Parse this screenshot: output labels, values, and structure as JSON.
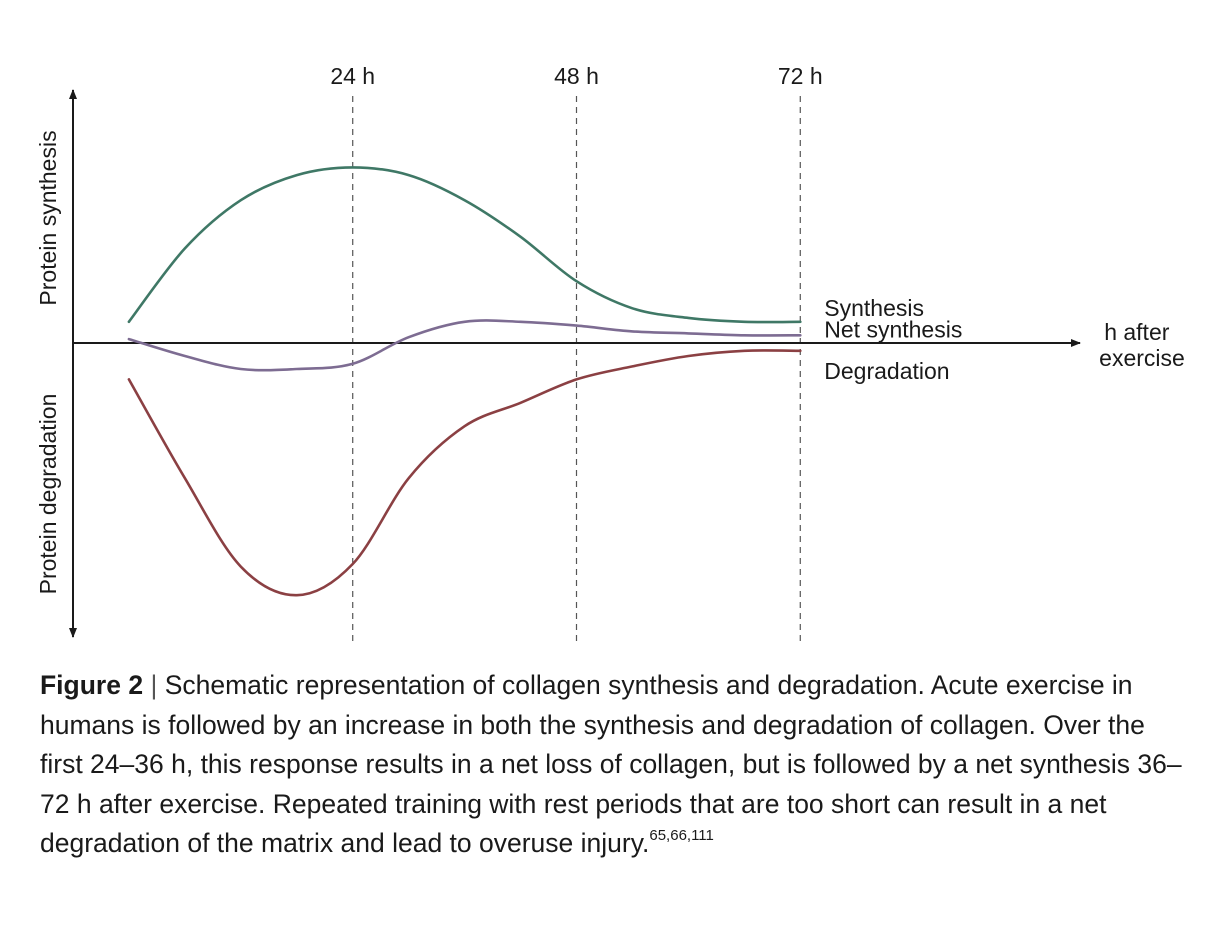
{
  "chart_data": {
    "type": "line",
    "title": "",
    "xlabel": "h after exercise",
    "ylabel_top": "Protein synthesis",
    "ylabel_bottom": "Protein degradation",
    "x_ticks": [
      {
        "x": 24,
        "label": "24 h"
      },
      {
        "x": 48,
        "label": "48 h"
      },
      {
        "x": 72,
        "label": "72 h"
      }
    ],
    "xlim": [
      -6,
      102
    ],
    "ylim": [
      -1.0,
      1.0
    ],
    "grid": "dashed vertical lines at 24 h, 48 h, 72 h",
    "y_ticks": "none (schematic)",
    "series": [
      {
        "name": "Synthesis",
        "color": "#3f7866",
        "x": [
          0,
          6,
          12,
          18,
          24,
          30,
          36,
          42,
          48,
          54,
          60,
          66,
          72
        ],
        "y": [
          0.11,
          0.49,
          0.74,
          0.87,
          0.91,
          0.87,
          0.74,
          0.55,
          0.32,
          0.18,
          0.13,
          0.11,
          0.11
        ]
      },
      {
        "name": "Net synthesis",
        "color": "#7d6c92",
        "x": [
          0,
          6,
          12,
          18,
          24,
          30,
          36,
          42,
          48,
          54,
          60,
          66,
          72
        ],
        "y": [
          0.02,
          -0.05,
          -0.1,
          -0.1,
          -0.08,
          0.03,
          0.11,
          0.11,
          0.09,
          0.06,
          0.05,
          0.04,
          0.04
        ]
      },
      {
        "name": "Degradation",
        "color": "#8b4043",
        "x": [
          0,
          6,
          12,
          18,
          24,
          30,
          36,
          42,
          48,
          54,
          60,
          66,
          72
        ],
        "y": [
          -0.14,
          -0.52,
          -0.86,
          -0.97,
          -0.85,
          -0.52,
          -0.32,
          -0.23,
          -0.14,
          -0.09,
          -0.05,
          -0.03,
          -0.03
        ]
      }
    ]
  },
  "caption": {
    "figure_label": "Figure 2",
    "separator": "|",
    "text": " Schematic representation of collagen synthesis and degradation. Acute exercise in humans is followed by an increase in both the synthesis and degradation of collagen. Over the first 24–36 h, this response results in a net loss of collagen, but is followed by a net synthesis 36–72 h after exercise. Repeated training with rest periods that are too short can result in a net degradation of the matrix and lead to overuse injury.",
    "references": "65,66,111"
  }
}
